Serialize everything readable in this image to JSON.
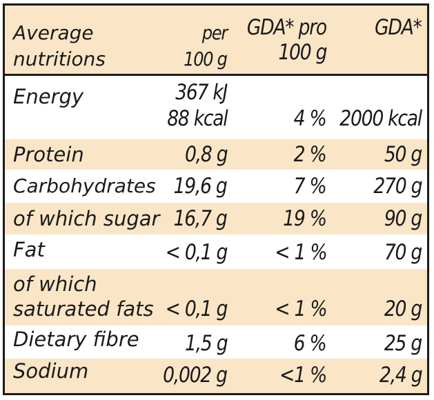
{
  "header": {
    "col1_line1": "Average",
    "col1_line2": "nutritions",
    "col2_line1": "per",
    "col2_line2": "100 g",
    "col3_line1": "GDA* pro",
    "col3_line2": "100 g",
    "col4_line1": "GDA*"
  },
  "rows": [
    {
      "name": "Energy",
      "value_line1": "367 kJ",
      "value_line2": "88 kcal",
      "gda_per_100g": "4 %",
      "gda": "2000 kcal"
    },
    {
      "name": "Protein",
      "value": "0,8 g",
      "gda_per_100g": "2 %",
      "gda": "50 g"
    },
    {
      "name": "Carbohydrates",
      "value": "19,6 g",
      "gda_per_100g": "7 %",
      "gda": "270 g"
    },
    {
      "name": "of which sugar",
      "value": "16,7 g",
      "gda_per_100g": "19 %",
      "gda": "90 g"
    },
    {
      "name": "Fat",
      "value": "< 0,1 g",
      "gda_per_100g": "< 1 %",
      "gda": "70 g"
    },
    {
      "name_line1": "of which",
      "name_line2": "saturated fats",
      "value": "< 0,1 g",
      "gda_per_100g": "< 1 %",
      "gda": "20 g"
    },
    {
      "name": "Dietary fibre",
      "value": "1,5 g",
      "gda_per_100g": "6 %",
      "gda": "25 g"
    },
    {
      "name": "Sodium",
      "value": "0,002 g",
      "gda_per_100g": "<1 %",
      "gda": "2,4 g"
    }
  ],
  "colors": {
    "band": "#fae6c7",
    "text": "#1a1a1a",
    "border": "#1a1a1a"
  }
}
